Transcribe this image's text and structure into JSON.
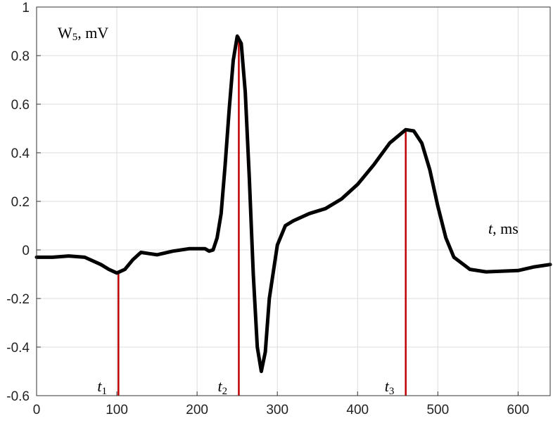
{
  "chart_data": {
    "type": "line",
    "y_label": [
      "W",
      "5",
      ", mV"
    ],
    "x_label": [
      "t",
      ", ms"
    ],
    "xlim": [
      0,
      640
    ],
    "ylim": [
      -0.6,
      1
    ],
    "xticks": [
      0,
      100,
      200,
      300,
      400,
      500,
      600
    ],
    "yticks": [
      -0.6,
      -0.4,
      -0.2,
      0,
      0.2,
      0.4,
      0.6,
      0.8,
      1
    ],
    "grid": true,
    "series": [
      {
        "color": "#000000",
        "x": [
          0,
          20,
          40,
          60,
          80,
          90,
          100,
          110,
          120,
          130,
          140,
          150,
          170,
          190,
          210,
          215,
          220,
          225,
          230,
          235,
          240,
          245,
          250,
          255,
          260,
          265,
          270,
          275,
          280,
          285,
          290,
          300,
          310,
          320,
          340,
          360,
          380,
          400,
          420,
          440,
          460,
          470,
          480,
          490,
          500,
          510,
          520,
          540,
          560,
          600,
          620,
          640
        ],
        "values": [
          -0.03,
          -0.03,
          -0.025,
          -0.03,
          -0.06,
          -0.08,
          -0.095,
          -0.08,
          -0.04,
          -0.01,
          -0.015,
          -0.02,
          -0.005,
          0.005,
          0.005,
          -0.005,
          0,
          0.05,
          0.15,
          0.35,
          0.58,
          0.78,
          0.88,
          0.85,
          0.65,
          0.3,
          -0.1,
          -0.4,
          -0.5,
          -0.42,
          -0.2,
          0.02,
          0.1,
          0.12,
          0.15,
          0.17,
          0.21,
          0.27,
          0.35,
          0.44,
          0.495,
          0.49,
          0.44,
          0.33,
          0.18,
          0.05,
          -0.03,
          -0.08,
          -0.09,
          -0.085,
          -0.07,
          -0.06
        ]
      }
    ],
    "markers": {
      "color": "#c00000",
      "x": [
        102,
        252,
        460
      ],
      "values": [
        -0.095,
        0.88,
        0.495
      ],
      "labels": [
        [
          "t",
          "1"
        ],
        [
          "t",
          "2"
        ],
        [
          "t",
          "3"
        ]
      ]
    }
  }
}
